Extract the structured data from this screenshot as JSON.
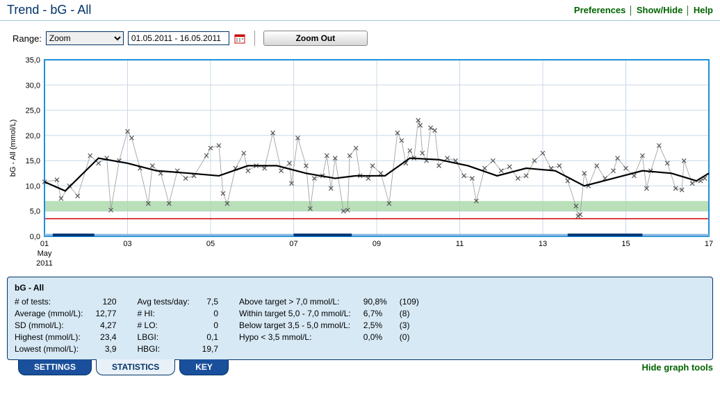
{
  "header": {
    "title": "Trend - bG - All",
    "links": {
      "preferences": "Preferences",
      "showhide": "Show/Hide",
      "help": "Help"
    }
  },
  "controls": {
    "range_label": "Range:",
    "range_selected": "Zoom",
    "date_range": "01.05.2011 - 16.05.2011",
    "zoom_out": "Zoom Out"
  },
  "chart": {
    "type": "scatter+line",
    "ylabel": "bG - All (mmol/L)",
    "x_axis": {
      "min": 1,
      "max": 17,
      "ticks": [
        1,
        3,
        5,
        7,
        9,
        11,
        13,
        15,
        17
      ],
      "tick_labels": [
        "01",
        "03",
        "05",
        "07",
        "09",
        "11",
        "13",
        "15",
        "17"
      ],
      "sublabel_line1": "May",
      "sublabel_line2": "2011"
    },
    "y_axis": {
      "min": 0,
      "max": 35,
      "tick_step": 5,
      "tick_labels": [
        "0,0",
        "5,0",
        "10,0",
        "15,0",
        "20,0",
        "25,0",
        "30,0",
        "35,0"
      ]
    },
    "target_band": {
      "low": 5.0,
      "high": 7.0,
      "fill": "#a8d8a8"
    },
    "hypo_line": {
      "y": 3.5,
      "color": "#cc0000"
    },
    "plot_border_color": "#1e90d8",
    "grid_color": "#c8d8e8",
    "background_color": "#ffffff",
    "marker": {
      "symbol": "x",
      "color": "#555555",
      "size": 6
    },
    "raw_line_color": "#999999",
    "trend_line_color": "#000000",
    "label_fontsize": 11,
    "points": [
      [
        1.0,
        10.8
      ],
      [
        1.3,
        11.2
      ],
      [
        1.4,
        7.5
      ],
      [
        1.6,
        10.0
      ],
      [
        1.8,
        8.0
      ],
      [
        2.1,
        16.0
      ],
      [
        2.3,
        14.5
      ],
      [
        2.5,
        15.5
      ],
      [
        2.6,
        5.2
      ],
      [
        2.8,
        15.0
      ],
      [
        3.0,
        20.8
      ],
      [
        3.1,
        19.5
      ],
      [
        3.3,
        13.5
      ],
      [
        3.5,
        6.5
      ],
      [
        3.6,
        14.0
      ],
      [
        3.8,
        12.5
      ],
      [
        4.0,
        6.5
      ],
      [
        4.2,
        13.0
      ],
      [
        4.4,
        11.5
      ],
      [
        4.6,
        12.0
      ],
      [
        4.9,
        16.0
      ],
      [
        5.0,
        17.5
      ],
      [
        5.2,
        18.0
      ],
      [
        5.3,
        8.5
      ],
      [
        5.4,
        6.5
      ],
      [
        5.6,
        13.5
      ],
      [
        5.8,
        16.5
      ],
      [
        5.9,
        13.0
      ],
      [
        6.1,
        14.0
      ],
      [
        6.3,
        13.5
      ],
      [
        6.5,
        20.5
      ],
      [
        6.7,
        13.0
      ],
      [
        6.9,
        14.5
      ],
      [
        6.95,
        10.5
      ],
      [
        7.1,
        19.5
      ],
      [
        7.3,
        14.0
      ],
      [
        7.4,
        5.5
      ],
      [
        7.5,
        11.5
      ],
      [
        7.7,
        12.0
      ],
      [
        7.8,
        16.0
      ],
      [
        7.9,
        9.5
      ],
      [
        8.0,
        15.5
      ],
      [
        8.2,
        5.0
      ],
      [
        8.3,
        5.2
      ],
      [
        8.35,
        16.0
      ],
      [
        8.5,
        17.5
      ],
      [
        8.6,
        12.0
      ],
      [
        8.8,
        11.5
      ],
      [
        8.9,
        14.0
      ],
      [
        9.1,
        12.5
      ],
      [
        9.3,
        6.5
      ],
      [
        9.5,
        20.5
      ],
      [
        9.6,
        19.0
      ],
      [
        9.7,
        14.5
      ],
      [
        9.8,
        17.0
      ],
      [
        9.9,
        15.5
      ],
      [
        10.0,
        23.0
      ],
      [
        10.05,
        22.0
      ],
      [
        10.1,
        16.5
      ],
      [
        10.2,
        15.0
      ],
      [
        10.3,
        21.5
      ],
      [
        10.4,
        21.0
      ],
      [
        10.5,
        14.0
      ],
      [
        10.7,
        15.5
      ],
      [
        10.9,
        15.0
      ],
      [
        11.1,
        12.0
      ],
      [
        11.3,
        11.5
      ],
      [
        11.4,
        7.0
      ],
      [
        11.6,
        13.5
      ],
      [
        11.8,
        15.0
      ],
      [
        12.0,
        13.0
      ],
      [
        12.2,
        13.8
      ],
      [
        12.4,
        11.5
      ],
      [
        12.6,
        12.0
      ],
      [
        12.8,
        15.0
      ],
      [
        13.0,
        16.5
      ],
      [
        13.2,
        13.5
      ],
      [
        13.4,
        14.0
      ],
      [
        13.6,
        11.0
      ],
      [
        13.8,
        6.0
      ],
      [
        13.85,
        4.0
      ],
      [
        13.9,
        4.3
      ],
      [
        14.0,
        12.5
      ],
      [
        14.1,
        10.0
      ],
      [
        14.3,
        14.0
      ],
      [
        14.5,
        11.5
      ],
      [
        14.7,
        13.0
      ],
      [
        14.8,
        15.5
      ],
      [
        15.0,
        13.5
      ],
      [
        15.2,
        12.0
      ],
      [
        15.4,
        16.0
      ],
      [
        15.5,
        9.5
      ],
      [
        15.6,
        13.0
      ],
      [
        15.8,
        18.0
      ],
      [
        16.0,
        14.5
      ],
      [
        16.2,
        9.5
      ],
      [
        16.35,
        9.2
      ],
      [
        16.4,
        15.0
      ],
      [
        16.6,
        10.5
      ],
      [
        16.8,
        11.0
      ],
      [
        16.9,
        11.5
      ]
    ],
    "trend_points": [
      [
        1.0,
        10.8
      ],
      [
        1.5,
        9.0
      ],
      [
        2.3,
        15.5
      ],
      [
        3.0,
        14.5
      ],
      [
        3.7,
        13.0
      ],
      [
        4.5,
        12.5
      ],
      [
        5.2,
        12.0
      ],
      [
        5.9,
        14.0
      ],
      [
        6.6,
        14.0
      ],
      [
        7.3,
        12.5
      ],
      [
        8.0,
        11.5
      ],
      [
        8.5,
        12.0
      ],
      [
        9.2,
        12.0
      ],
      [
        9.8,
        15.5
      ],
      [
        10.5,
        15.2
      ],
      [
        11.2,
        14.0
      ],
      [
        11.9,
        12.0
      ],
      [
        12.6,
        13.5
      ],
      [
        13.3,
        13.0
      ],
      [
        14.0,
        10.0
      ],
      [
        14.7,
        11.5
      ],
      [
        15.4,
        13.0
      ],
      [
        16.1,
        12.5
      ],
      [
        16.7,
        11.0
      ],
      [
        17.0,
        12.5
      ]
    ],
    "slider_segments": [
      [
        1.2,
        2.2
      ],
      [
        7.0,
        8.4
      ],
      [
        13.6,
        15.4
      ]
    ]
  },
  "stats": {
    "title": "bG - All",
    "col1": [
      [
        "# of tests:",
        "120"
      ],
      [
        "Average (mmol/L):",
        "12,77"
      ],
      [
        "SD (mmol/L):",
        "4,27"
      ],
      [
        "Highest (mmol/L):",
        "23,4"
      ],
      [
        "Lowest (mmol/L):",
        "3,9"
      ]
    ],
    "col2": [
      [
        "Avg tests/day:",
        "7,5"
      ],
      [
        "# HI:",
        "0"
      ],
      [
        "# LO:",
        "0"
      ],
      [
        "LBGI:",
        "0,1"
      ],
      [
        "HBGI:",
        "19,7"
      ]
    ],
    "col3": [
      [
        "Above target > 7,0 mmol/L:",
        "90,8%",
        "(109)"
      ],
      [
        "Within target 5,0 - 7,0 mmol/L:",
        "6,7%",
        "(8)"
      ],
      [
        "Below target 3,5 - 5,0 mmol/L:",
        "2,5%",
        "(3)"
      ],
      [
        "Hypo < 3,5 mmol/L:",
        "0,0%",
        "(0)"
      ]
    ]
  },
  "tabs": {
    "settings": "SETTINGS",
    "statistics": "STATISTICS",
    "key": "KEY",
    "hide": "Hide graph tools"
  }
}
